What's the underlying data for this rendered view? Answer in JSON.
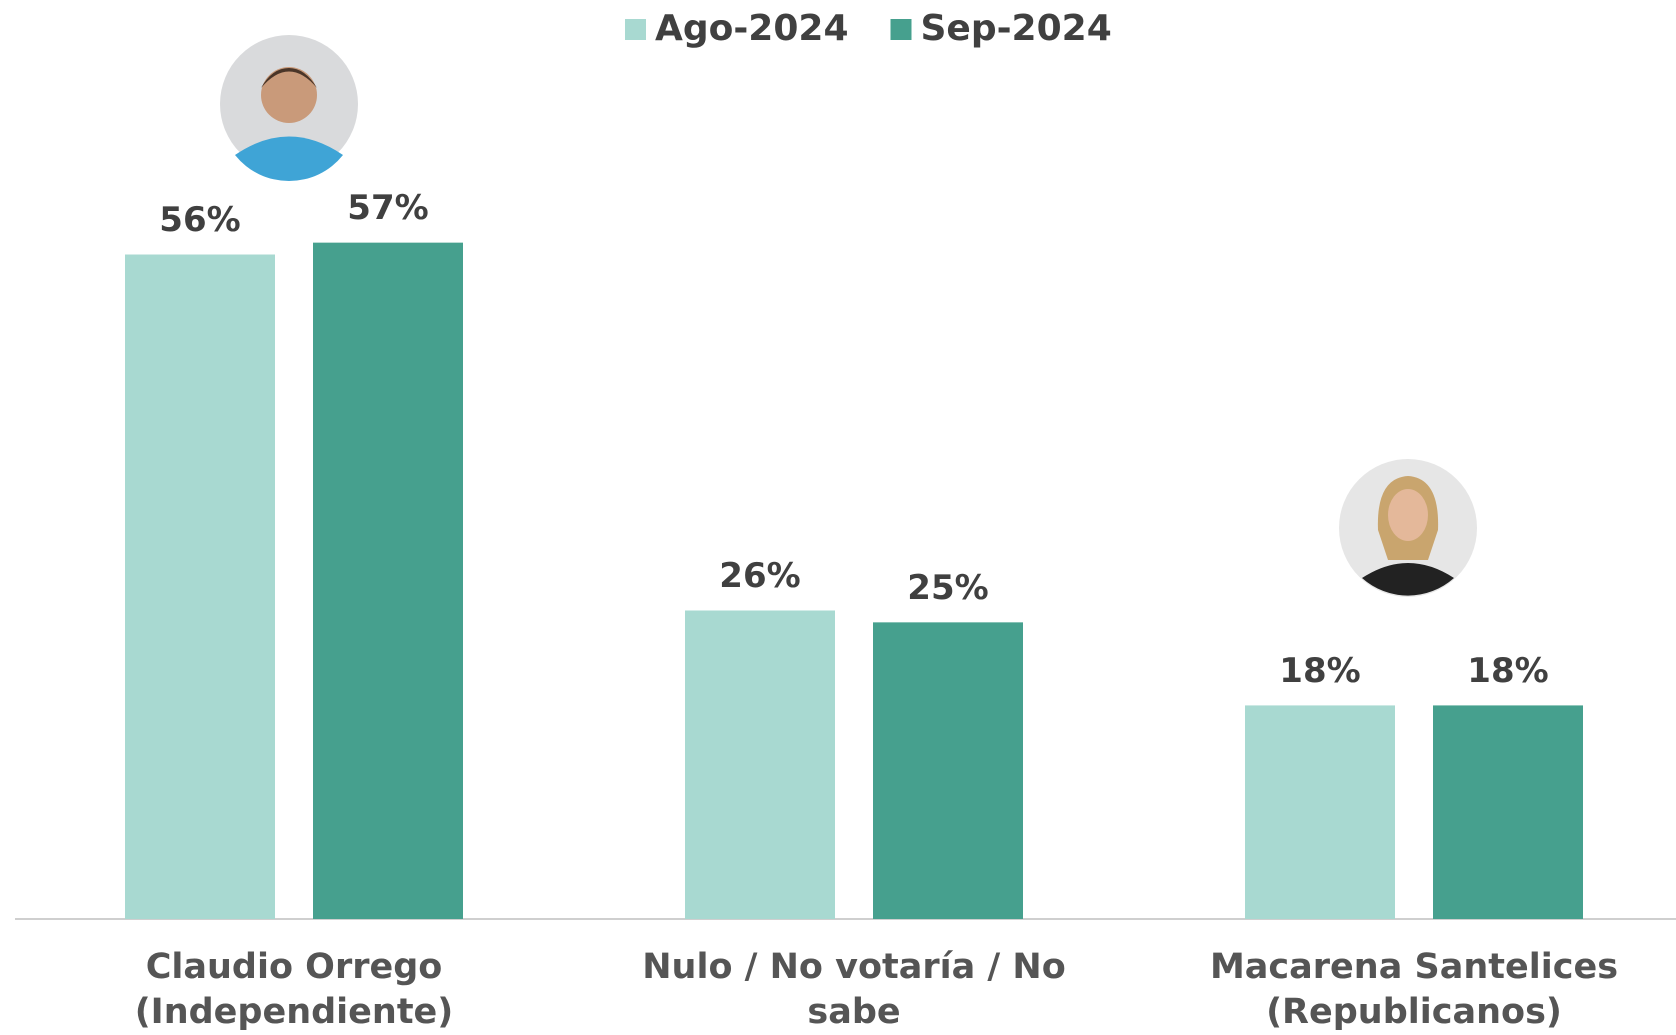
{
  "chart_data": {
    "type": "bar",
    "categories": [
      "Claudio Orrego\n(Independiente)",
      "Nulo / No votaría / No sabe",
      "Macarena Santelices\n(Republicanos)"
    ],
    "series": [
      {
        "name": "Ago-2024",
        "color": "#a8d9d1",
        "values": [
          56,
          26,
          18
        ],
        "value_labels": [
          "56%",
          "26%",
          "18%"
        ]
      },
      {
        "name": "Sep-2024",
        "color": "#46a08e",
        "values": [
          57,
          25,
          18
        ],
        "value_labels": [
          "57%",
          "25%",
          "18%"
        ]
      }
    ]
  }
}
